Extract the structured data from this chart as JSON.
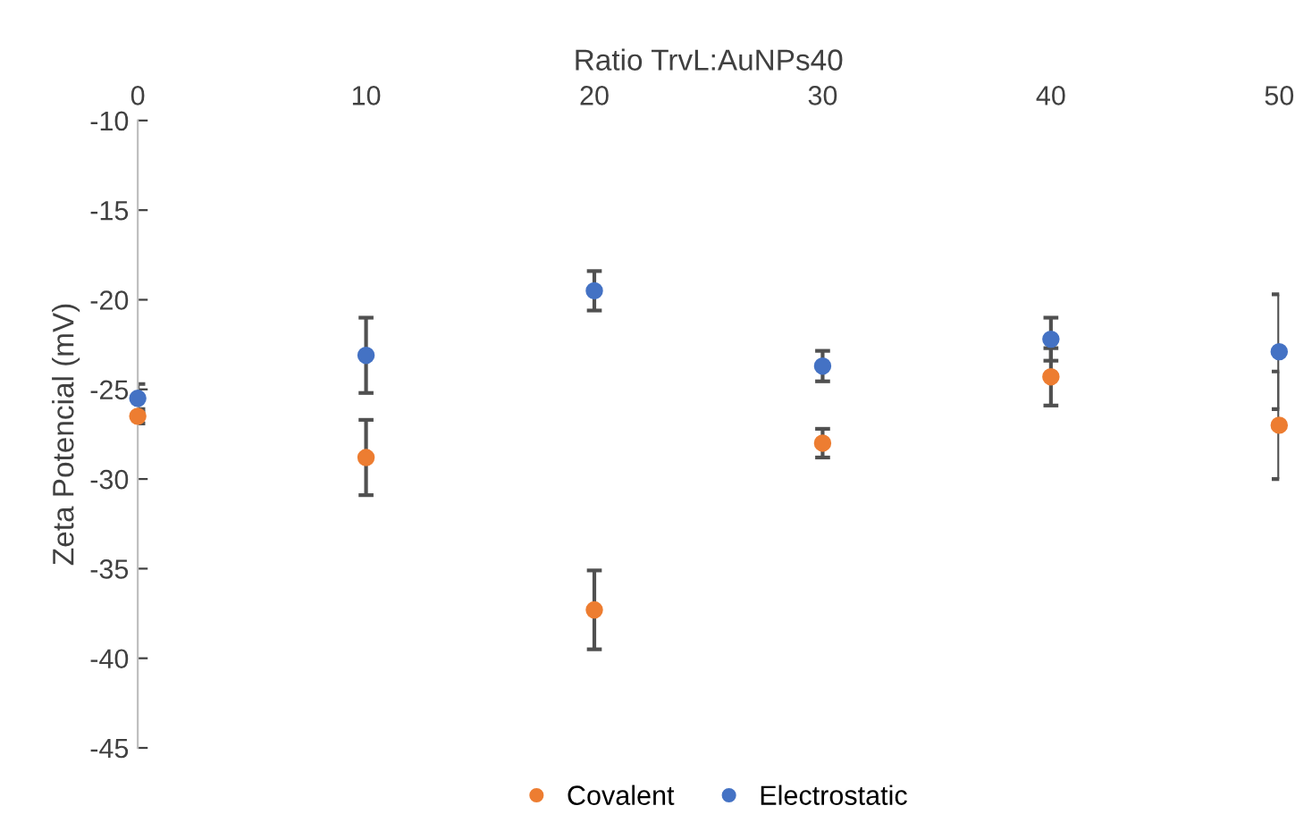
{
  "chart_data": {
    "type": "scatter",
    "xlabel": "Ratio TrvL:AuNPs40",
    "ylabel": "Zeta Potencial (mV)",
    "x": [
      0,
      10,
      20,
      30,
      40,
      50
    ],
    "series": [
      {
        "name": "Covalent",
        "color": "#ed7d31",
        "values": [
          -26.5,
          -28.8,
          -37.3,
          -28.0,
          -24.3,
          -27.0
        ],
        "errors": [
          0.4,
          2.1,
          2.2,
          0.8,
          1.6,
          3.0
        ]
      },
      {
        "name": "Electrostatic",
        "color": "#4472c4",
        "values": [
          -25.5,
          -23.1,
          -19.5,
          -23.7,
          -22.2,
          -22.9
        ],
        "errors": [
          0.8,
          2.1,
          1.1,
          0.85,
          1.2,
          3.2
        ]
      }
    ],
    "xlim": [
      0,
      50
    ],
    "xticks": [
      0,
      10,
      20,
      30,
      40,
      50
    ],
    "ylim": [
      -45,
      -10
    ],
    "yticks": [
      -45,
      -40,
      -35,
      -30,
      -25,
      -20,
      -15,
      -10
    ],
    "grid": false,
    "legend": "bottom",
    "marker": "circle"
  }
}
